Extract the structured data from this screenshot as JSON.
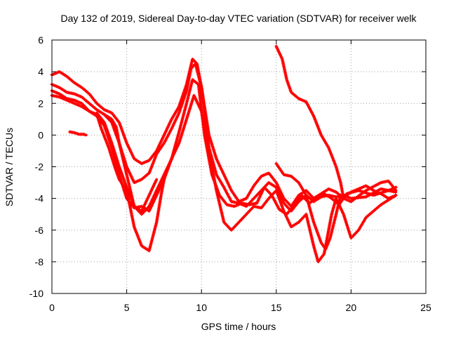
{
  "chart_data": {
    "type": "scatter",
    "title": "Day 132 of 2019, Sidereal Day-to-day VTEC variation (SDTVAR) for receiver welk",
    "xlabel": "GPS time / hours",
    "ylabel": "SDTVAR / TECUs",
    "xlim": [
      0,
      25
    ],
    "ylim": [
      -10,
      6
    ],
    "xticks": [
      0,
      5,
      10,
      15,
      20,
      25
    ],
    "yticks": [
      -10,
      -8,
      -6,
      -4,
      -2,
      0,
      2,
      4,
      6
    ],
    "grid": true,
    "marker": "plus",
    "color": "#ff0000",
    "series": [
      {
        "name": "s1",
        "points": [
          [
            0,
            3.8
          ],
          [
            0.5,
            4.0
          ],
          [
            1,
            3.7
          ],
          [
            1.5,
            3.3
          ],
          [
            2,
            3.0
          ],
          [
            2.5,
            2.6
          ],
          [
            3,
            2.0
          ],
          [
            3.5,
            1.6
          ],
          [
            4,
            1.4
          ],
          [
            4.5,
            0.8
          ],
          [
            5,
            -0.5
          ],
          [
            5.5,
            -1.5
          ],
          [
            6,
            -1.8
          ],
          [
            6.5,
            -1.6
          ],
          [
            7,
            -1.0
          ],
          [
            7.5,
            0.0
          ],
          [
            8,
            1.0
          ],
          [
            8.5,
            1.8
          ],
          [
            9,
            3.2
          ],
          [
            9.4,
            4.8
          ],
          [
            9.7,
            4.5
          ],
          [
            10,
            3.0
          ],
          [
            10.5,
            0.0
          ],
          [
            11,
            -1.5
          ],
          [
            11.5,
            -2.5
          ],
          [
            12,
            -3.5
          ],
          [
            12.5,
            -4.2
          ],
          [
            13,
            -4.0
          ],
          [
            13.5,
            -3.2
          ],
          [
            14,
            -2.6
          ],
          [
            14.5,
            -2.4
          ],
          [
            15,
            -3.0
          ],
          [
            15.5,
            -4.0
          ],
          [
            16,
            -4.5
          ],
          [
            16.5,
            -3.8
          ],
          [
            17,
            -3.5
          ],
          [
            17.5,
            -4.0
          ],
          [
            18,
            -3.7
          ],
          [
            18.5,
            -3.4
          ],
          [
            19,
            -3.6
          ],
          [
            19.5,
            -4.0
          ],
          [
            20,
            -4.2
          ],
          [
            21,
            -3.5
          ],
          [
            22,
            -3.0
          ],
          [
            22.5,
            -2.9
          ],
          [
            23,
            -3.5
          ]
        ]
      },
      {
        "name": "s2",
        "points": [
          [
            0,
            3.2
          ],
          [
            0.5,
            3.0
          ],
          [
            1,
            2.7
          ],
          [
            1.5,
            2.6
          ],
          [
            2,
            2.4
          ],
          [
            2.5,
            2.0
          ],
          [
            3,
            1.6
          ],
          [
            3.5,
            1.3
          ],
          [
            4,
            0.8
          ],
          [
            4.5,
            -0.5
          ],
          [
            5,
            -2.0
          ],
          [
            5.5,
            -3.0
          ],
          [
            6,
            -2.8
          ],
          [
            6.5,
            -2.4
          ],
          [
            7,
            -1.2
          ],
          [
            7.5,
            -0.5
          ],
          [
            8,
            0.4
          ],
          [
            8.5,
            1.4
          ],
          [
            9,
            2.8
          ],
          [
            9.3,
            4.2
          ],
          [
            9.6,
            4.5
          ],
          [
            10,
            3.0
          ],
          [
            10.5,
            -0.8
          ],
          [
            11,
            -2.5
          ],
          [
            11.5,
            -3.3
          ],
          [
            12,
            -4.2
          ],
          [
            12.5,
            -4.3
          ],
          [
            13,
            -4.5
          ],
          [
            13.5,
            -4.0
          ],
          [
            14,
            -3.5
          ],
          [
            14.5,
            -3.0
          ],
          [
            15,
            -3.3
          ],
          [
            15.5,
            -4.3
          ],
          [
            16,
            -4.8
          ],
          [
            16.5,
            -4.2
          ],
          [
            17,
            -3.8
          ],
          [
            17.5,
            -4.2
          ],
          [
            18,
            -3.9
          ],
          [
            18.5,
            -3.8
          ],
          [
            19,
            -3.9
          ],
          [
            19.5,
            -3.8
          ],
          [
            20,
            -4.0
          ],
          [
            21,
            -3.9
          ],
          [
            22,
            -3.4
          ],
          [
            23,
            -3.6
          ]
        ]
      },
      {
        "name": "s3",
        "points": [
          [
            0,
            2.8
          ],
          [
            0.5,
            2.6
          ],
          [
            1,
            2.3
          ],
          [
            1.5,
            2.2
          ],
          [
            2,
            2.0
          ],
          [
            2.5,
            1.5
          ],
          [
            3,
            1.2
          ],
          [
            3.5,
            0.6
          ],
          [
            4,
            -0.8
          ],
          [
            4.5,
            -2.5
          ],
          [
            5,
            -4.0
          ],
          [
            5.5,
            -4.6
          ],
          [
            6,
            -4.5
          ],
          [
            6.5,
            -4.8
          ],
          [
            7,
            -3.8
          ],
          [
            7.5,
            -2.8
          ],
          [
            8,
            -1.5
          ],
          [
            8.5,
            0.2
          ],
          [
            9,
            2.0
          ],
          [
            9.4,
            3.5
          ],
          [
            9.8,
            3.2
          ],
          [
            10.2,
            0.0
          ],
          [
            10.7,
            -2.5
          ],
          [
            11.2,
            -3.8
          ],
          [
            11.7,
            -4.4
          ],
          [
            12.2,
            -4.5
          ],
          [
            12.7,
            -4.3
          ],
          [
            13.2,
            -4.4
          ],
          [
            13.7,
            -4.3
          ],
          [
            14.2,
            -3.3
          ],
          [
            14.7,
            -3.8
          ],
          [
            15.2,
            -4.7
          ],
          [
            15.7,
            -5.0
          ],
          [
            16.2,
            -4.4
          ],
          [
            16.7,
            -3.8
          ],
          [
            17.2,
            -4.3
          ],
          [
            17.7,
            -4.0
          ],
          [
            18.2,
            -3.7
          ],
          [
            18.7,
            -4.0
          ],
          [
            19.2,
            -4.4
          ],
          [
            19.7,
            -3.7
          ],
          [
            20.5,
            -3.5
          ],
          [
            21.5,
            -3.8
          ],
          [
            22.5,
            -3.5
          ],
          [
            23,
            -3.3
          ]
        ]
      },
      {
        "name": "s4",
        "points": [
          [
            0,
            2.5
          ],
          [
            0.5,
            2.4
          ],
          [
            1,
            2.2
          ],
          [
            1.5,
            2.0
          ],
          [
            2,
            1.8
          ],
          [
            2.5,
            1.5
          ],
          [
            3,
            1.3
          ],
          [
            3.3,
            0.4
          ],
          [
            3.8,
            -0.8
          ],
          [
            4.2,
            -2.0
          ],
          [
            4.5,
            -2.8
          ],
          [
            5,
            -3.5
          ],
          [
            5.5,
            -5.8
          ],
          [
            6,
            -7.0
          ],
          [
            6.5,
            -7.3
          ],
          [
            7,
            -5.5
          ],
          [
            7.3,
            -3.8
          ],
          [
            7.5,
            -2.8
          ]
        ]
      },
      {
        "name": "s5",
        "points": [
          [
            3.5,
            1.3
          ],
          [
            4,
            1.0
          ],
          [
            4.3,
            0.5
          ],
          [
            4.5,
            -0.5
          ],
          [
            5,
            -2.5
          ],
          [
            5.5,
            -4.5
          ],
          [
            6,
            -5.0
          ],
          [
            6.5,
            -4.5
          ],
          [
            7,
            -3.5
          ],
          [
            7.5,
            -2.5
          ],
          [
            8,
            -1.5
          ],
          [
            8.5,
            -0.5
          ],
          [
            9,
            1.0
          ],
          [
            9.5,
            2.5
          ],
          [
            10,
            1.5
          ],
          [
            10.5,
            -1.0
          ],
          [
            11,
            -3.5
          ],
          [
            11.5,
            -5.5
          ],
          [
            12,
            -6.0
          ],
          [
            12.5,
            -5.5
          ],
          [
            13,
            -5.0
          ],
          [
            13.5,
            -4.5
          ],
          [
            14,
            -4.6
          ],
          [
            14.5,
            -4.0
          ],
          [
            15,
            -3.5
          ],
          [
            15.5,
            -4.8
          ],
          [
            16,
            -5.8
          ],
          [
            16.5,
            -5.5
          ],
          [
            17,
            -5.0
          ],
          [
            17.5,
            -7.0
          ],
          [
            17.8,
            -8.0
          ],
          [
            18.2,
            -7.5
          ],
          [
            18.7,
            -5.0
          ],
          [
            19,
            -4.0
          ],
          [
            19.5,
            -5.0
          ],
          [
            20,
            -6.5
          ],
          [
            20.5,
            -6.0
          ],
          [
            21,
            -5.2
          ],
          [
            22,
            -4.4
          ],
          [
            23,
            -3.8
          ]
        ]
      },
      {
        "name": "s6",
        "points": [
          [
            3.0,
            1.4
          ],
          [
            3.5,
            0.8
          ],
          [
            4,
            -0.5
          ],
          [
            4.5,
            -2.0
          ],
          [
            5,
            -3.3
          ],
          [
            5.5,
            -4.5
          ],
          [
            6,
            -4.8
          ],
          [
            6.5,
            -3.8
          ],
          [
            7,
            -2.8
          ]
        ]
      },
      {
        "name": "s7",
        "points": [
          [
            15.0,
            5.6
          ],
          [
            15.4,
            4.8
          ],
          [
            15.7,
            3.5
          ],
          [
            16,
            2.7
          ],
          [
            16.5,
            2.3
          ],
          [
            17,
            2.1
          ],
          [
            17.5,
            1.2
          ],
          [
            18,
            0.0
          ],
          [
            18.5,
            -0.8
          ],
          [
            19,
            -2.0
          ],
          [
            19.3,
            -3.0
          ],
          [
            19.5,
            -4.0
          ],
          [
            19.7,
            -3.8
          ],
          [
            20,
            -3.6
          ],
          [
            20.5,
            -3.4
          ],
          [
            21,
            -3.2
          ],
          [
            21.5,
            -3.5
          ],
          [
            22,
            -3.7
          ],
          [
            22.5,
            -4.0
          ],
          [
            23,
            -3.8
          ]
        ]
      },
      {
        "name": "s8",
        "points": [
          [
            15.0,
            -1.8
          ],
          [
            15.5,
            -2.5
          ],
          [
            16,
            -2.6
          ],
          [
            16.5,
            -3.0
          ],
          [
            17,
            -3.8
          ],
          [
            17.5,
            -5.5
          ],
          [
            18,
            -6.8
          ],
          [
            18.3,
            -7.2
          ],
          [
            18.6,
            -6.5
          ],
          [
            19,
            -5.0
          ],
          [
            19.3,
            -3.8
          ]
        ]
      },
      {
        "name": "s9",
        "points": [
          [
            1.2,
            0.2
          ],
          [
            1.5,
            0.15
          ],
          [
            1.8,
            0.05
          ],
          [
            2.1,
            0.05
          ],
          [
            2.3,
            0.0
          ]
        ]
      }
    ]
  }
}
